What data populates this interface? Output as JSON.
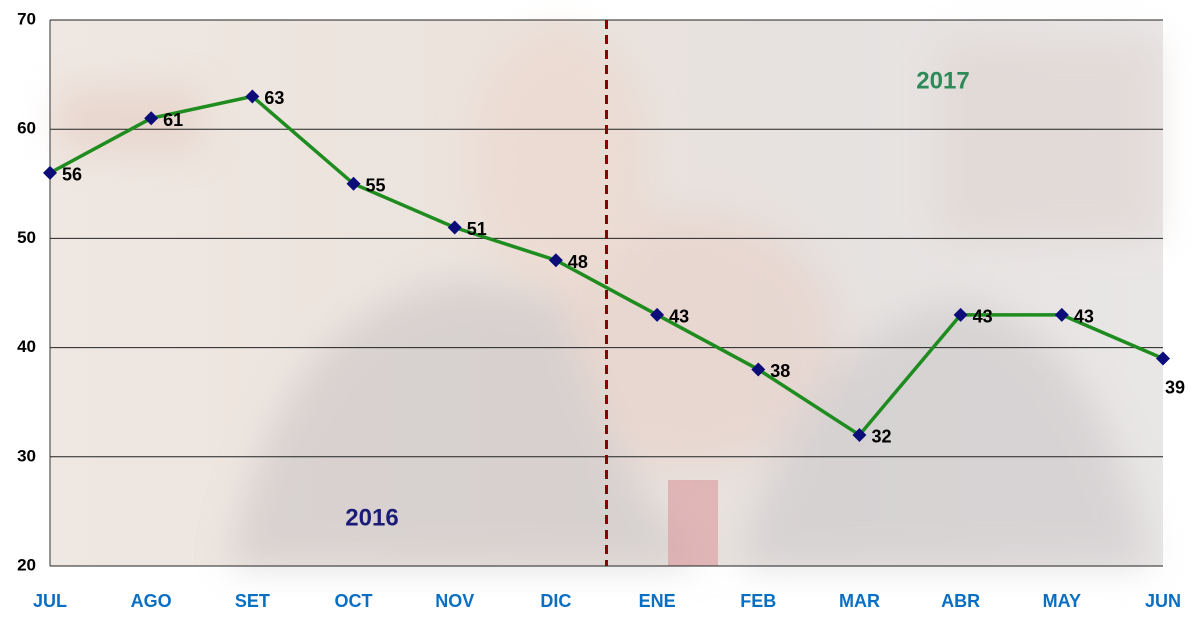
{
  "chart_data": {
    "type": "line",
    "categories": [
      "JUL",
      "AGO",
      "SET",
      "OCT",
      "NOV",
      "DIC",
      "ENE",
      "FEB",
      "MAR",
      "ABR",
      "MAY",
      "JUN"
    ],
    "series": [
      {
        "color": "#1e8c1e",
        "marker_color": "#0d0d7a",
        "values": [
          56,
          61,
          63,
          55,
          51,
          48,
          43,
          38,
          32,
          43,
          43,
          39
        ]
      }
    ],
    "ylim": [
      20,
      70
    ],
    "yticks": [
      20,
      30,
      40,
      50,
      60,
      70
    ],
    "grid": true,
    "annotations": [
      {
        "text": "2016",
        "color": "#1b1b78"
      },
      {
        "text": "2017",
        "color": "#2e8b57"
      }
    ],
    "divider_color": "#8b0000"
  }
}
